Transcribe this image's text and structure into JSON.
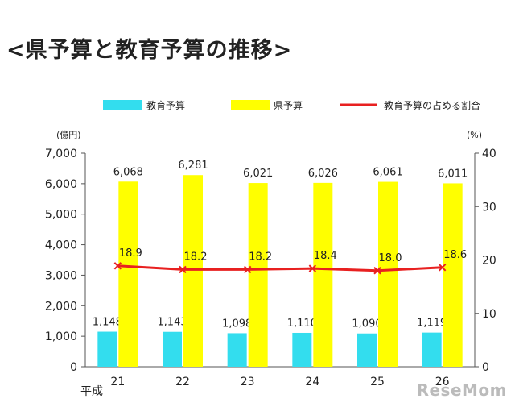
{
  "title": "<県予算と教育予算の推移>",
  "chart_data": {
    "type": "bar",
    "categories": [
      "21",
      "22",
      "23",
      "24",
      "25",
      "26"
    ],
    "category_prefix": "平成",
    "series": [
      {
        "name": "教育予算",
        "type": "bar",
        "axis": "left",
        "color": "#33ddee",
        "values": [
          1148,
          1143,
          1098,
          1110,
          1090,
          1119
        ],
        "labels": [
          "1,148",
          "1,143",
          "1,098",
          "1,110",
          "1,090",
          "1,119"
        ]
      },
      {
        "name": "県予算",
        "type": "bar",
        "axis": "left",
        "color": "#ffff00",
        "values": [
          6068,
          6281,
          6021,
          6026,
          6061,
          6011
        ],
        "labels": [
          "6,068",
          "6,281",
          "6,021",
          "6,026",
          "6,061",
          "6,011"
        ]
      },
      {
        "name": "教育予算の占める割合",
        "type": "line",
        "axis": "right",
        "color": "#e82020",
        "values": [
          18.9,
          18.2,
          18.2,
          18.4,
          18.0,
          18.6
        ],
        "labels": [
          "18.9",
          "18.2",
          "18.2",
          "18.4",
          "18.0",
          "18.6"
        ]
      }
    ],
    "y_left": {
      "unit": "(億円)",
      "ylim": [
        0,
        7000
      ],
      "ticks": [
        0,
        1000,
        2000,
        3000,
        4000,
        5000,
        6000,
        7000
      ],
      "tick_labels": [
        "0",
        "1,000",
        "2,000",
        "3,000",
        "4,000",
        "5,000",
        "6,000",
        "7,000"
      ]
    },
    "y_right": {
      "unit": "(%)",
      "ylim": [
        0,
        40
      ],
      "ticks": [
        0,
        10,
        20,
        30,
        40
      ],
      "tick_labels": [
        "0",
        "10",
        "20",
        "30",
        "40"
      ]
    },
    "legend_position": "top",
    "grid": false
  },
  "watermark": "ReseMom"
}
